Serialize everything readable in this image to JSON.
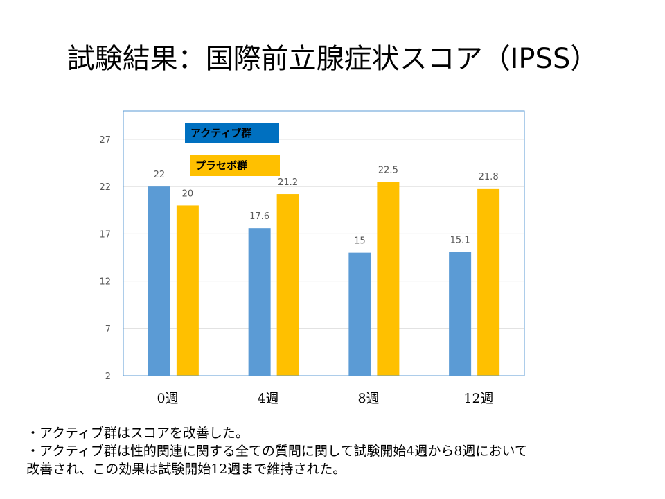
{
  "title": "試験結果：国際前立腺症状スコア（IPSS）",
  "legend": {
    "active": "アクティブ群",
    "placebo": "プラセボ群"
  },
  "colors": {
    "active": "#5b9bd5",
    "placebo": "#ffc000",
    "legend_active_bg": "#0070c0",
    "legend_placebo_bg": "#ffc000",
    "plot_border": "#5b9bd5",
    "gridline": "#d9d9d9",
    "tick_text": "#595959"
  },
  "chart_data": {
    "type": "bar",
    "title": "",
    "categories": [
      "0週",
      "4週",
      "8週",
      "12週"
    ],
    "series": [
      {
        "name": "アクティブ群",
        "values": [
          22,
          17.6,
          15,
          15.1
        ]
      },
      {
        "name": "プラセボ群",
        "values": [
          20,
          21.2,
          22.5,
          21.8
        ]
      }
    ],
    "value_labels": [
      [
        "22",
        "17.6",
        "15",
        "15.1"
      ],
      [
        "20",
        "21.2",
        "22.5",
        "21.8"
      ]
    ],
    "yticks": [
      2,
      7,
      12,
      17,
      22,
      27
    ],
    "ytick_labels": [
      "2",
      "7",
      "12",
      "17",
      "22",
      "27"
    ],
    "ylim": [
      2,
      30
    ],
    "grid": true,
    "legend_position": "top-left"
  },
  "notes": {
    "line1": "・アクティブ群はスコアを改善した。",
    "line2": "・アクティブ群は性的関連に関する全ての質問に関して試験開始4週から8週において",
    "line3": "改善され、この効果は試験開始12週まで維持された。"
  }
}
